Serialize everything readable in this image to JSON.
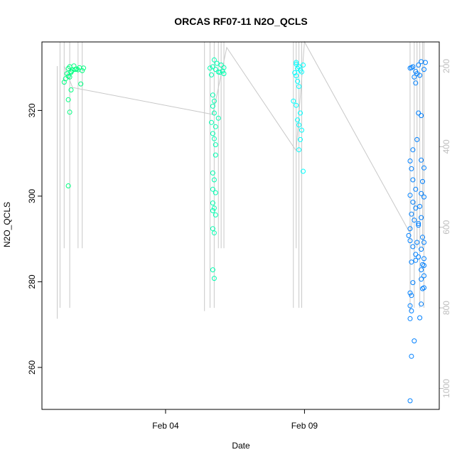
{
  "chart_data": {
    "type": "scatter",
    "title": "ORCAS RF07-11 N2O_QCLS",
    "xlabel": "Date",
    "ylabel": "N2O_QCLS",
    "x_ticks": [
      {
        "value": 4.0,
        "label": "Feb 04"
      },
      {
        "value": 9.0,
        "label": "Feb 09"
      }
    ],
    "xlim": [
      29.7,
      16.0
    ],
    "xlim_note": "",
    "xlim_days": [
      -0.45,
      13.85
    ],
    "ylim": [
      250.2,
      336.0
    ],
    "yticks": [
      260,
      280,
      300,
      320
    ],
    "y2lim": [
      1052,
      140
    ],
    "y2ticks": [
      200,
      400,
      600,
      800,
      1000
    ],
    "colors": {
      "flight1": "#00ff80",
      "flight2": "#00ffb0",
      "flight3": "#00ffff",
      "flight4": "#0080ff",
      "pressure_line": "#c8c8c8",
      "right_axis": "#bdbdbd"
    },
    "flights": [
      {
        "color": "#00ff80",
        "x_center": 0.5,
        "points": [
          [
            0.5,
            329.8
          ],
          [
            0.55,
            330.2
          ],
          [
            0.6,
            329.1
          ],
          [
            0.45,
            328.6
          ],
          [
            0.5,
            328.0
          ],
          [
            0.65,
            329.4
          ],
          [
            0.7,
            330.4
          ],
          [
            0.4,
            327.4
          ],
          [
            0.55,
            327.8
          ],
          [
            0.6,
            328.9
          ],
          [
            0.8,
            329.7
          ],
          [
            0.9,
            330.0
          ],
          [
            1.0,
            329.3
          ],
          [
            0.35,
            326.6
          ],
          [
            0.5,
            322.5
          ],
          [
            0.6,
            324.8
          ],
          [
            0.55,
            319.6
          ],
          [
            0.5,
            302.4
          ],
          [
            0.95,
            326.2
          ],
          [
            0.75,
            329.6
          ],
          [
            0.85,
            329.5
          ],
          [
            1.05,
            329.9
          ]
        ]
      },
      {
        "color": "#00ffb0",
        "x_center": 5.7,
        "points": [
          [
            5.7,
            330.2
          ],
          [
            5.8,
            329.6
          ],
          [
            5.9,
            329.0
          ],
          [
            6.0,
            330.6
          ],
          [
            6.1,
            328.6
          ],
          [
            5.75,
            331.8
          ],
          [
            5.85,
            331.0
          ],
          [
            5.65,
            328.3
          ],
          [
            5.7,
            323.6
          ],
          [
            5.75,
            322.2
          ],
          [
            5.7,
            321.0
          ],
          [
            5.75,
            319.4
          ],
          [
            5.65,
            317.2
          ],
          [
            5.8,
            316.2
          ],
          [
            5.7,
            314.6
          ],
          [
            5.75,
            313.4
          ],
          [
            5.8,
            309.6
          ],
          [
            5.7,
            305.4
          ],
          [
            5.75,
            303.8
          ],
          [
            5.7,
            301.6
          ],
          [
            5.8,
            300.8
          ],
          [
            5.7,
            298.4
          ],
          [
            5.75,
            297.2
          ],
          [
            5.7,
            296.6
          ],
          [
            5.8,
            295.6
          ],
          [
            5.7,
            292.4
          ],
          [
            5.75,
            291.4
          ],
          [
            5.7,
            282.8
          ],
          [
            5.75,
            280.8
          ],
          [
            5.8,
            312.0
          ],
          [
            5.9,
            318.2
          ],
          [
            6.05,
            329.2
          ],
          [
            6.1,
            330.0
          ],
          [
            5.6,
            329.9
          ],
          [
            5.95,
            328.9
          ]
        ]
      },
      {
        "color": "#00ffff",
        "x_center": 8.75,
        "points": [
          [
            8.7,
            330.8
          ],
          [
            8.75,
            329.8
          ],
          [
            8.8,
            330.2
          ],
          [
            8.85,
            329.4
          ],
          [
            8.9,
            329.0
          ],
          [
            8.65,
            328.8
          ],
          [
            8.7,
            331.2
          ],
          [
            8.95,
            330.6
          ],
          [
            8.75,
            326.8
          ],
          [
            8.8,
            325.6
          ],
          [
            8.7,
            321.2
          ],
          [
            8.85,
            319.4
          ],
          [
            8.75,
            317.8
          ],
          [
            8.8,
            316.6
          ],
          [
            8.9,
            315.4
          ],
          [
            8.85,
            313.2
          ],
          [
            8.8,
            310.8
          ],
          [
            8.95,
            305.8
          ],
          [
            8.6,
            322.2
          ],
          [
            8.7,
            328.1
          ]
        ]
      },
      {
        "color": "#0080ff",
        "x_center": 13.0,
        "points": [
          [
            12.8,
            329.9
          ],
          [
            12.9,
            330.2
          ],
          [
            13.0,
            329.1
          ],
          [
            13.1,
            330.6
          ],
          [
            13.2,
            331.4
          ],
          [
            13.05,
            328.6
          ],
          [
            12.95,
            327.8
          ],
          [
            13.15,
            328.2
          ],
          [
            13.3,
            329.6
          ],
          [
            13.35,
            331.2
          ],
          [
            13.0,
            326.4
          ],
          [
            12.85,
            330.0
          ],
          [
            13.1,
            319.4
          ],
          [
            13.2,
            318.8
          ],
          [
            13.05,
            313.2
          ],
          [
            12.9,
            310.8
          ],
          [
            12.8,
            308.2
          ],
          [
            12.85,
            306.4
          ],
          [
            12.9,
            303.8
          ],
          [
            13.0,
            301.6
          ],
          [
            12.8,
            300.2
          ],
          [
            12.9,
            298.6
          ],
          [
            13.0,
            297.2
          ],
          [
            12.85,
            295.8
          ],
          [
            12.95,
            294.4
          ],
          [
            13.1,
            293.2
          ],
          [
            12.8,
            292.4
          ],
          [
            13.2,
            300.6
          ],
          [
            13.25,
            303.4
          ],
          [
            13.3,
            306.6
          ],
          [
            13.2,
            308.4
          ],
          [
            13.3,
            299.8
          ],
          [
            13.15,
            297.6
          ],
          [
            13.2,
            295.0
          ],
          [
            13.1,
            293.6
          ],
          [
            13.25,
            290.4
          ],
          [
            13.3,
            289.2
          ],
          [
            12.8,
            289.6
          ],
          [
            12.9,
            288.2
          ],
          [
            13.0,
            286.4
          ],
          [
            12.85,
            284.6
          ],
          [
            13.1,
            285.8
          ],
          [
            13.2,
            287.6
          ],
          [
            13.3,
            285.4
          ],
          [
            13.25,
            284.0
          ],
          [
            13.3,
            283.8
          ],
          [
            13.2,
            282.8
          ],
          [
            13.3,
            281.4
          ],
          [
            13.2,
            280.6
          ],
          [
            13.25,
            278.4
          ],
          [
            13.3,
            278.6
          ],
          [
            12.9,
            279.8
          ],
          [
            12.8,
            277.4
          ],
          [
            12.85,
            276.8
          ],
          [
            12.8,
            274.4
          ],
          [
            12.85,
            273.2
          ],
          [
            12.8,
            271.4
          ],
          [
            12.85,
            262.6
          ],
          [
            12.8,
            252.2
          ],
          [
            12.95,
            266.2
          ],
          [
            13.0,
            285.0
          ],
          [
            13.05,
            289.2
          ],
          [
            12.75,
            290.8
          ],
          [
            13.15,
            271.6
          ],
          [
            13.2,
            274.8
          ]
        ]
      }
    ],
    "pressure_lines": {
      "diagonal_path_days_pressure": [
        [
          0.35,
          200
        ],
        [
          0.65,
          253
        ],
        [
          5.7,
          320
        ],
        [
          6.2,
          154
        ],
        [
          8.7,
          410
        ],
        [
          9.0,
          130
        ],
        [
          12.8,
          615
        ],
        [
          13.0,
          535
        ]
      ],
      "vertical_spikes": [
        {
          "x": 0.1,
          "from": 200,
          "to": 827
        },
        {
          "x": 0.2,
          "from": 140,
          "to": 800
        },
        {
          "x": 0.35,
          "from": 140,
          "to": 652
        },
        {
          "x": 0.55,
          "from": 140,
          "to": 800
        },
        {
          "x": 0.85,
          "from": 140,
          "to": 652
        },
        {
          "x": 1.0,
          "from": 140,
          "to": 652
        },
        {
          "x": 5.4,
          "from": 140,
          "to": 808
        },
        {
          "x": 5.6,
          "from": 140,
          "to": 800
        },
        {
          "x": 5.75,
          "from": 140,
          "to": 800
        },
        {
          "x": 5.9,
          "from": 140,
          "to": 652
        },
        {
          "x": 6.0,
          "from": 140,
          "to": 652
        },
        {
          "x": 6.1,
          "from": 140,
          "to": 652
        },
        {
          "x": 8.6,
          "from": 140,
          "to": 800
        },
        {
          "x": 8.7,
          "from": 140,
          "to": 652
        },
        {
          "x": 8.8,
          "from": 140,
          "to": 800
        },
        {
          "x": 8.9,
          "from": 140,
          "to": 800
        },
        {
          "x": 12.8,
          "from": 140,
          "to": 808
        },
        {
          "x": 12.95,
          "from": 140,
          "to": 800
        },
        {
          "x": 13.05,
          "from": 140,
          "to": 652
        },
        {
          "x": 13.15,
          "from": 140,
          "to": 800
        },
        {
          "x": 13.25,
          "from": 140,
          "to": 652
        },
        {
          "x": 13.3,
          "from": 140,
          "to": 800
        }
      ]
    }
  }
}
